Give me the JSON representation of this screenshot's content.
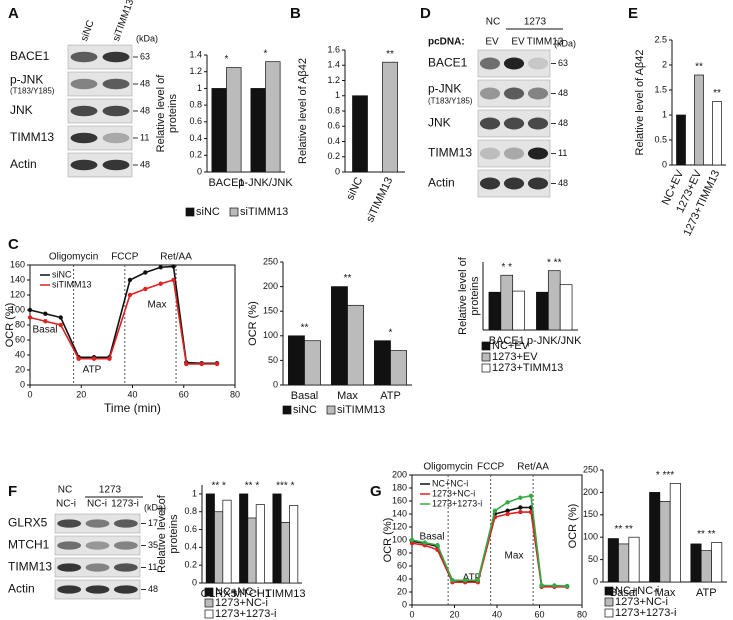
{
  "panel_labels": [
    "A",
    "B",
    "C",
    "D",
    "E",
    "F",
    "G"
  ],
  "blots": [
    {
      "columns": [
        "siNC",
        "siTIMM13"
      ],
      "unit": "(kDa)",
      "rows": [
        {
          "label": "BACE1",
          "marker": 63
        },
        {
          "label": "p-JNK",
          "sublabel": "(T183/Y185)",
          "marker": 48
        },
        {
          "label": "JNK",
          "marker": 48
        },
        {
          "label": "TIMM13",
          "marker": 11
        },
        {
          "label": "Actin",
          "marker": 48
        }
      ]
    },
    {
      "groups": [
        "NC",
        "1273"
      ],
      "vector_label": "pcDNA:",
      "columns": [
        "EV",
        "EV",
        "TIMM13"
      ],
      "unit": "(kDa)",
      "rows": [
        {
          "label": "BACE1",
          "marker": 63
        },
        {
          "label": "p-JNK",
          "sublabel": "(T183/Y185)",
          "marker": 48
        },
        {
          "label": "JNK",
          "marker": 48
        },
        {
          "label": "TIMM13",
          "marker": 11
        },
        {
          "label": "Actin",
          "marker": 48
        }
      ]
    },
    {
      "groups": [
        "NC",
        "1273"
      ],
      "columns": [
        "NC-i",
        "NC-i",
        "1273-i"
      ],
      "unit": "(kDa)",
      "rows": [
        {
          "label": "GLRX5",
          "marker": 17
        },
        {
          "label": "MTCH1",
          "marker": 35
        },
        {
          "label": "TIMM13",
          "marker": 11
        },
        {
          "label": "Actin",
          "marker": 48
        }
      ]
    }
  ],
  "chart_data": [
    {
      "type": "bar",
      "ylabel": [
        "Relative level of",
        "proteins"
      ],
      "categories": [
        "BACE1",
        "p-JNK/JNK"
      ],
      "series": [
        {
          "name": "siNC",
          "color": "#111111",
          "values": [
            1,
            1
          ]
        },
        {
          "name": "siTIMM13",
          "color": "#bbbbbb",
          "values": [
            1.25,
            1.32
          ]
        }
      ],
      "significance": [
        "*",
        "*"
      ],
      "ylim": [
        0,
        1.4
      ],
      "yticks": [
        0,
        0.2,
        0.4,
        0.6,
        0.8,
        1,
        1.2,
        1.4
      ]
    },
    {
      "type": "bar",
      "ylabel": [
        "Relative level of Aβ42"
      ],
      "categories": [
        "siNC",
        "siTIMM13"
      ],
      "values": [
        1,
        1.44
      ],
      "colors": [
        "#111111",
        "#bbbbbb"
      ],
      "significance": [
        null,
        "**"
      ],
      "ylim": [
        0,
        1.6
      ],
      "yticks": [
        0,
        0.2,
        0.4,
        0.6,
        0.8,
        1,
        1.2,
        1.4,
        1.6
      ]
    },
    {
      "type": "line",
      "xlabel": "Time (min)",
      "ylabel": [
        "OCR (%)"
      ],
      "x": [
        0,
        6,
        12,
        19,
        25,
        31,
        39,
        45,
        51,
        56,
        61,
        67,
        73
      ],
      "series": [
        {
          "name": "siNC",
          "color": "#111111",
          "values": [
            100,
            95,
            90,
            37,
            37,
            37,
            140,
            150,
            157,
            158,
            30,
            29,
            29
          ]
        },
        {
          "name": "siTIMM13",
          "color": "#dd2222",
          "values": [
            90,
            85,
            80,
            35,
            35,
            35,
            120,
            128,
            135,
            140,
            28,
            28,
            28
          ]
        }
      ],
      "events": [
        {
          "label": "Oligomycin",
          "x": 17
        },
        {
          "label": "FCCP",
          "x": 37
        },
        {
          "label": "Ret/AA",
          "x": 57
        }
      ],
      "phase_labels": [
        "Basal",
        "ATP",
        "Max"
      ],
      "xlim": [
        0,
        80
      ],
      "xticks": [
        0,
        20,
        40,
        60,
        80
      ],
      "ylim": [
        0,
        160
      ],
      "yticks": [
        0,
        20,
        40,
        60,
        80,
        100,
        120,
        140,
        160
      ]
    },
    {
      "type": "bar",
      "ylabel": [
        "OCR (%)"
      ],
      "categories": [
        "Basal",
        "Max",
        "ATP"
      ],
      "series": [
        {
          "name": "siNC",
          "color": "#111111",
          "values": [
            100,
            200,
            90
          ]
        },
        {
          "name": "siTIMM13",
          "color": "#bbbbbb",
          "values": [
            90,
            162,
            70
          ]
        }
      ],
      "significance": [
        "**",
        "**",
        "*"
      ],
      "ylim": [
        0,
        250
      ],
      "yticks": [
        0,
        50,
        100,
        150,
        200,
        250
      ]
    },
    {
      "type": "bar",
      "ylabel": [
        "Relative level of",
        "proteins"
      ],
      "categories": [
        "BACE1",
        "p-JNK/JNK"
      ],
      "series": [
        {
          "name": "NC+EV",
          "color": "#111111",
          "values": [
            1,
            1
          ]
        },
        {
          "name": "1273+EV",
          "color": "#bbbbbb",
          "values": [
            1.45,
            1.57
          ]
        },
        {
          "name": "1273+TIMM13",
          "color": "#ffffff",
          "values": [
            1.03,
            1.2
          ]
        }
      ],
      "significance": [
        "* *",
        "* **"
      ],
      "ylim": [
        0,
        1.8
      ]
    },
    {
      "type": "bar",
      "ylabel": [
        "Relative level of Aβ42"
      ],
      "categories": [
        "NC+EV",
        "1273+EV",
        "1273+TIMM13"
      ],
      "values": [
        1,
        1.8,
        1.27
      ],
      "colors": [
        "#111111",
        "#bbbbbb",
        "#ffffff"
      ],
      "significance": [
        null,
        "**",
        "**"
      ],
      "ylim": [
        0,
        2.5
      ],
      "yticks": [
        0,
        0.5,
        1,
        1.5,
        2,
        2.5
      ]
    },
    {
      "type": "bar",
      "ylabel": [
        "Relative level of",
        "proteins"
      ],
      "categories": [
        "GLRX5",
        "MTCH1",
        "TIMM13"
      ],
      "series": [
        {
          "name": "NC+NC-i",
          "color": "#111111",
          "values": [
            1,
            1,
            1
          ]
        },
        {
          "name": "1273+NC-i",
          "color": "#bbbbbb",
          "values": [
            0.8,
            0.73,
            0.68
          ]
        },
        {
          "name": "1273+1273-i",
          "color": "#ffffff",
          "values": [
            0.93,
            0.88,
            0.87
          ]
        }
      ],
      "significance": [
        "** *",
        "** *",
        "*** *"
      ],
      "ylim": [
        0,
        1.1
      ],
      "yticks": [
        0,
        0.2,
        0.4,
        0.6,
        0.8,
        1
      ]
    },
    {
      "type": "line",
      "xlabel": "Time (min)",
      "ylabel": [
        "OCR (%)"
      ],
      "x": [
        0,
        6,
        12,
        19,
        25,
        31,
        39,
        45,
        51,
        56,
        61,
        67,
        73
      ],
      "series": [
        {
          "name": "NC+NC-i",
          "color": "#111111",
          "values": [
            98,
            95,
            90,
            38,
            37,
            37,
            140,
            145,
            150,
            150,
            30,
            29,
            29
          ]
        },
        {
          "name": "1273+NC-i",
          "color": "#dd2222",
          "values": [
            95,
            92,
            85,
            35,
            35,
            35,
            135,
            140,
            143,
            143,
            28,
            28,
            28
          ]
        },
        {
          "name": "1273+1273-i",
          "color": "#33aa44",
          "values": [
            100,
            96,
            92,
            38,
            38,
            38,
            145,
            158,
            165,
            168,
            30,
            30,
            29
          ]
        }
      ],
      "events": [
        {
          "label": "Oligomycin",
          "x": 17
        },
        {
          "label": "FCCP",
          "x": 37
        },
        {
          "label": "Ret/AA",
          "x": 57
        }
      ],
      "phase_labels": [
        "Basal",
        "ATP",
        "Max"
      ],
      "xlim": [
        0,
        80
      ],
      "xticks": [
        0,
        20,
        40,
        60,
        80
      ],
      "ylim": [
        0,
        200
      ],
      "yticks": [
        0,
        20,
        40,
        60,
        80,
        100,
        120,
        140,
        160,
        180,
        200
      ]
    },
    {
      "type": "bar",
      "ylabel": [
        "OCR (%)"
      ],
      "categories": [
        "Basal",
        "Max",
        "ATP"
      ],
      "series": [
        {
          "name": "NC+NC-i",
          "color": "#111111",
          "values": [
            97,
            200,
            85
          ]
        },
        {
          "name": "1273+NC-i",
          "color": "#bbbbbb",
          "values": [
            85,
            180,
            70
          ]
        },
        {
          "name": "1273+1273-i",
          "color": "#ffffff",
          "values": [
            100,
            220,
            88
          ]
        }
      ],
      "significance": [
        "** **",
        "* ***",
        "** **"
      ],
      "ylim": [
        0,
        250
      ],
      "yticks": [
        0,
        50,
        100,
        150,
        200,
        250
      ]
    }
  ]
}
